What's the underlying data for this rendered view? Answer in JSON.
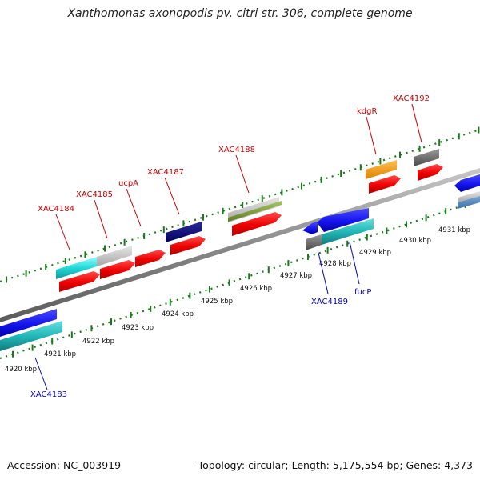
{
  "title": "Xanthomonas axonopodis pv. citri str. 306, complete genome",
  "footer": {
    "accession": "Accession: NC_003919",
    "summary": "Topology: circular; Length: 5,175,554 bp; Genes: 4,373"
  },
  "colors": {
    "forward_label": "#cc0000",
    "reverse_label": "#0000cc",
    "ruler_tick": "#1a7a1a",
    "backbone": "#808080"
  },
  "ruler_labels": [
    "4920 kbp",
    "4921 kbp",
    "4922 kbp",
    "4923 kbp",
    "4924 kbp",
    "4925 kbp",
    "4926 kbp",
    "4927 kbp",
    "4928 kbp",
    "4929 kbp",
    "4930 kbp",
    "4931 kbp"
  ],
  "forward_genes": [
    "XAC4184",
    "XAC4185",
    "ucpA",
    "XAC4187",
    "XAC4188",
    "kdgR",
    "XAC4192"
  ],
  "reverse_genes": [
    "XAC4183",
    "XAC4189",
    "fucP"
  ]
}
